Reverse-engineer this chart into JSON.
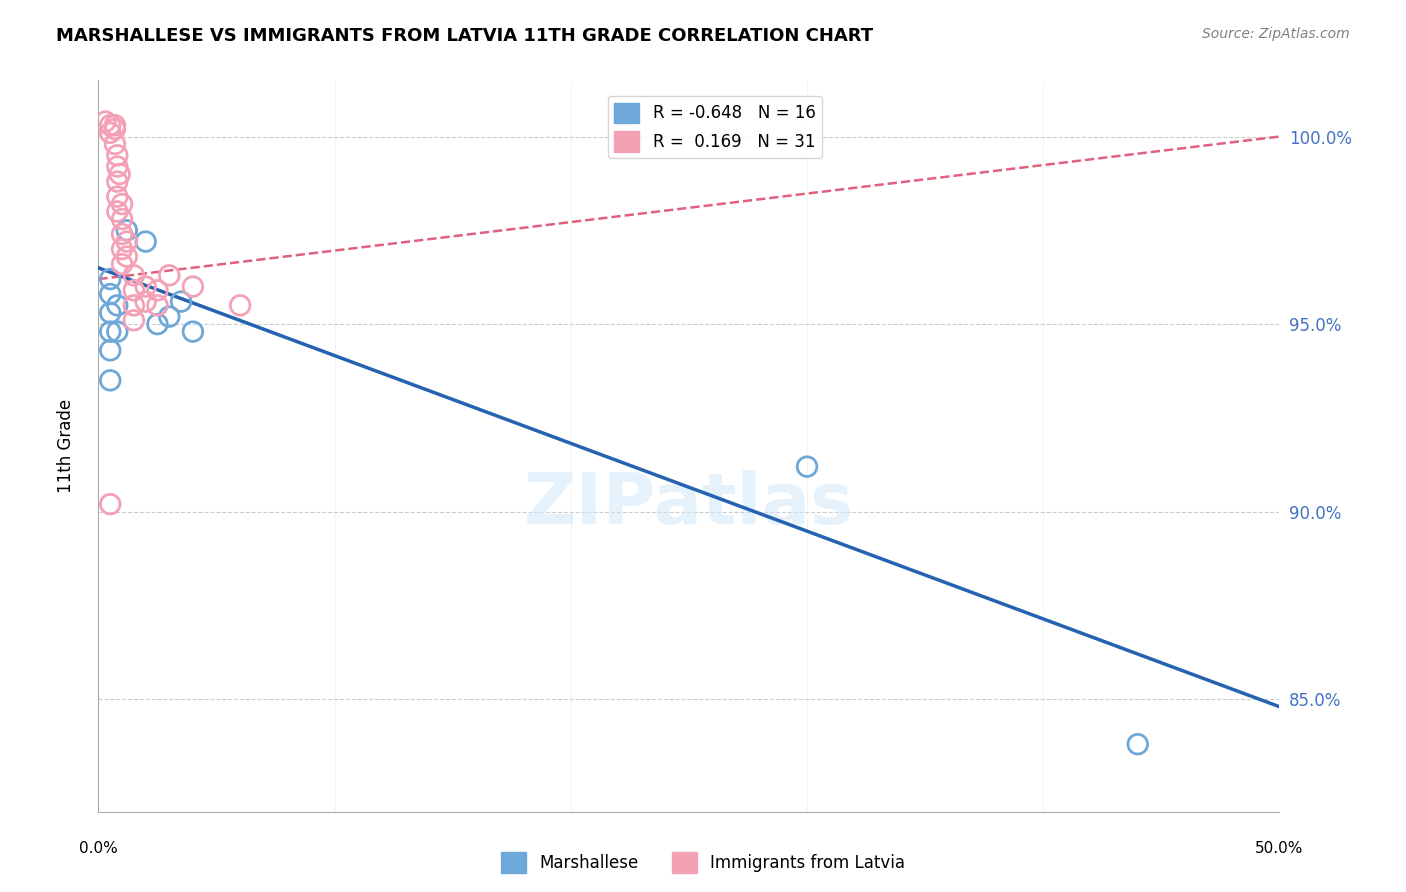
{
  "title": "MARSHALLESE VS IMMIGRANTS FROM LATVIA 11TH GRADE CORRELATION CHART",
  "source": "Source: ZipAtlas.com",
  "ylabel": "11th Grade",
  "watermark": "ZIPatlas",
  "blue_R": -0.648,
  "blue_N": 16,
  "pink_R": 0.169,
  "pink_N": 31,
  "blue_color": "#6ea8d8",
  "pink_color": "#f4a0b5",
  "blue_line_color": "#2563b0",
  "pink_line_color": "#e06080",
  "ytick_color": "#4472c4",
  "xmin": 0.0,
  "xmax": 0.5,
  "ymin": 82.0,
  "ymax": 101.5,
  "yticks": [
    85.0,
    90.0,
    95.0,
    100.0
  ],
  "blue_points": [
    [
      0.005,
      96.2
    ],
    [
      0.005,
      95.8
    ],
    [
      0.005,
      95.3
    ],
    [
      0.005,
      94.8
    ],
    [
      0.005,
      94.3
    ],
    [
      0.005,
      93.5
    ],
    [
      0.008,
      95.5
    ],
    [
      0.008,
      94.8
    ],
    [
      0.012,
      97.5
    ],
    [
      0.02,
      97.2
    ],
    [
      0.025,
      95.0
    ],
    [
      0.03,
      95.2
    ],
    [
      0.035,
      95.6
    ],
    [
      0.04,
      94.8
    ],
    [
      0.3,
      91.2
    ],
    [
      0.44,
      83.8
    ]
  ],
  "pink_points": [
    [
      0.003,
      100.4
    ],
    [
      0.005,
      100.3
    ],
    [
      0.005,
      100.1
    ],
    [
      0.007,
      100.3
    ],
    [
      0.007,
      100.2
    ],
    [
      0.007,
      99.8
    ],
    [
      0.008,
      99.5
    ],
    [
      0.008,
      99.2
    ],
    [
      0.008,
      98.8
    ],
    [
      0.008,
      98.4
    ],
    [
      0.008,
      98.0
    ],
    [
      0.009,
      99.0
    ],
    [
      0.01,
      98.2
    ],
    [
      0.01,
      97.8
    ],
    [
      0.01,
      97.4
    ],
    [
      0.01,
      97.0
    ],
    [
      0.01,
      96.6
    ],
    [
      0.012,
      97.2
    ],
    [
      0.012,
      96.8
    ],
    [
      0.015,
      96.3
    ],
    [
      0.015,
      95.9
    ],
    [
      0.015,
      95.5
    ],
    [
      0.015,
      95.1
    ],
    [
      0.02,
      96.0
    ],
    [
      0.02,
      95.6
    ],
    [
      0.025,
      95.9
    ],
    [
      0.025,
      95.5
    ],
    [
      0.03,
      96.3
    ],
    [
      0.04,
      96.0
    ],
    [
      0.06,
      95.5
    ],
    [
      0.005,
      90.2
    ]
  ],
  "blue_line_x": [
    0.0,
    0.5
  ],
  "blue_line_y": [
    96.5,
    84.8
  ],
  "pink_line_x": [
    0.0,
    0.5
  ],
  "pink_line_y": [
    96.2,
    100.0
  ]
}
